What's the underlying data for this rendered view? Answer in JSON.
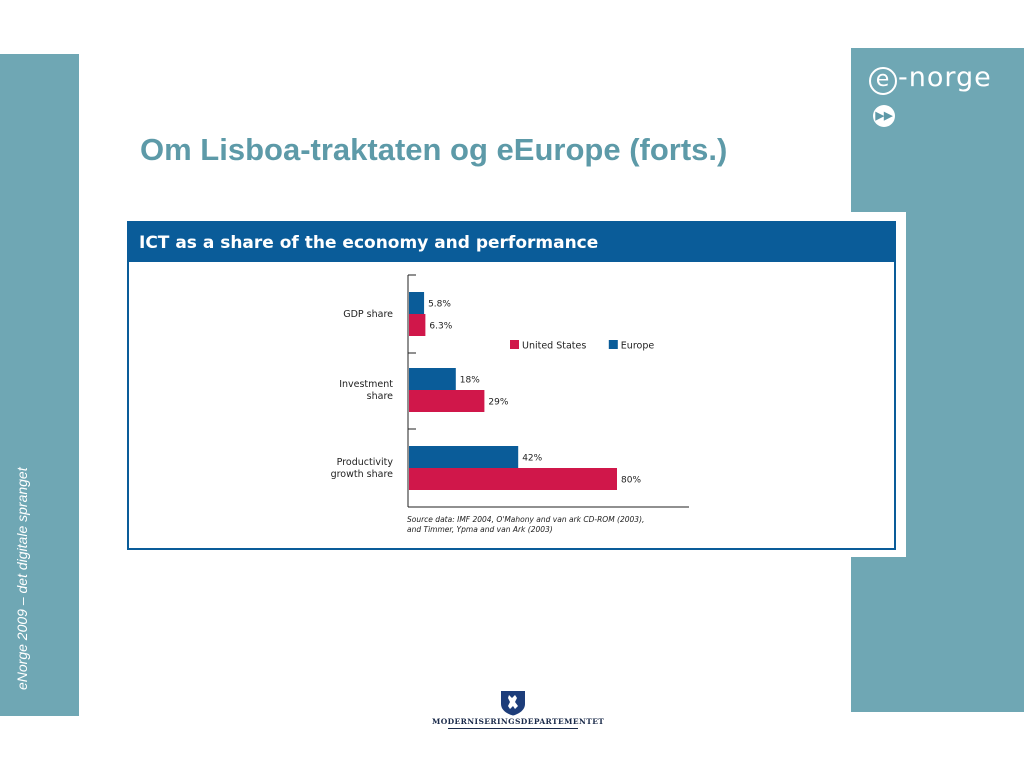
{
  "slide": {
    "title": "Om Lisboa-traktaten og eEurope (forts.)",
    "tagline": "eNorge 2009 – det digitale spranget",
    "logo_letter": "e",
    "logo_text": "-norge",
    "ministry": "MODERNISERINGSDEPARTEMENTET"
  },
  "colors": {
    "band": "#6fa7b4",
    "europe": "#0a5c99",
    "united_states": "#d0174a",
    "title": "#5d9aa8"
  },
  "chart_data": {
    "type": "bar",
    "orientation": "horizontal",
    "title": "ICT as a share of the economy and performance",
    "categories": [
      "GDP share",
      "Investment share",
      "Productivity growth share"
    ],
    "category_label_lines": [
      [
        "GDP share"
      ],
      [
        "Investment",
        "share"
      ],
      [
        "Productivity",
        "growth share"
      ]
    ],
    "series": [
      {
        "name": "Europe",
        "color": "#0a5c99",
        "values": [
          5.8,
          18,
          42
        ],
        "labels": [
          "5.8%",
          "18%",
          "42%"
        ]
      },
      {
        "name": "United States",
        "color": "#d0174a",
        "values": [
          6.3,
          29,
          80
        ],
        "labels": [
          "6.3%",
          "29%",
          "80%"
        ]
      }
    ],
    "legend_order": [
      "United States",
      "Europe"
    ],
    "legend_position": "right of GDP share group",
    "xlim": [
      0,
      100
    ],
    "grid": false,
    "source": [
      "Source data: IMF 2004, O'Mahony and van ark CD-ROM (2003),",
      "and Timmer, Ypma and van Ark (2003)"
    ]
  }
}
